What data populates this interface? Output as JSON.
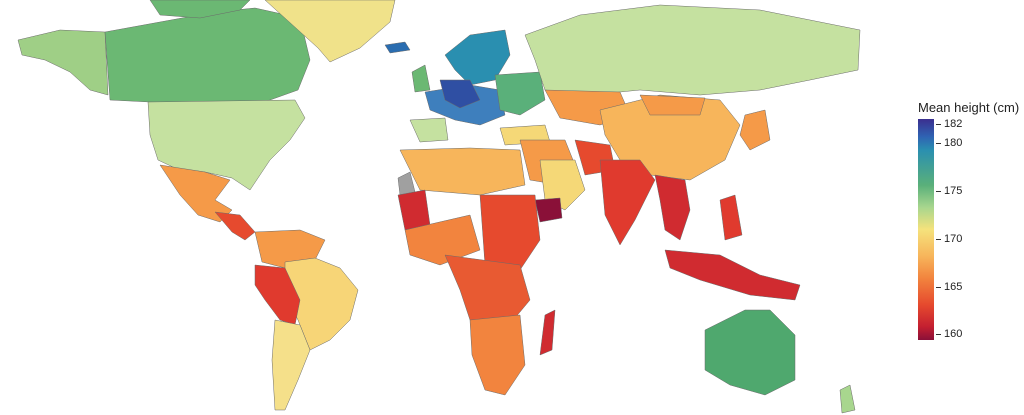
{
  "legend": {
    "title": "Mean height (cm)",
    "ticks": [
      "182",
      "180",
      "175",
      "170",
      "165",
      "160"
    ]
  },
  "colors": {
    "c182": "#3b2f8f",
    "c180": "#2a8fb0",
    "c175": "#a8d68e",
    "c172": "#f5d877",
    "c170": "#f7b55b",
    "c167": "#f2843e",
    "c165": "#e64a2e",
    "c162": "#c41f30",
    "c160": "#8a1038",
    "missing": "#a0a0a0"
  }
}
